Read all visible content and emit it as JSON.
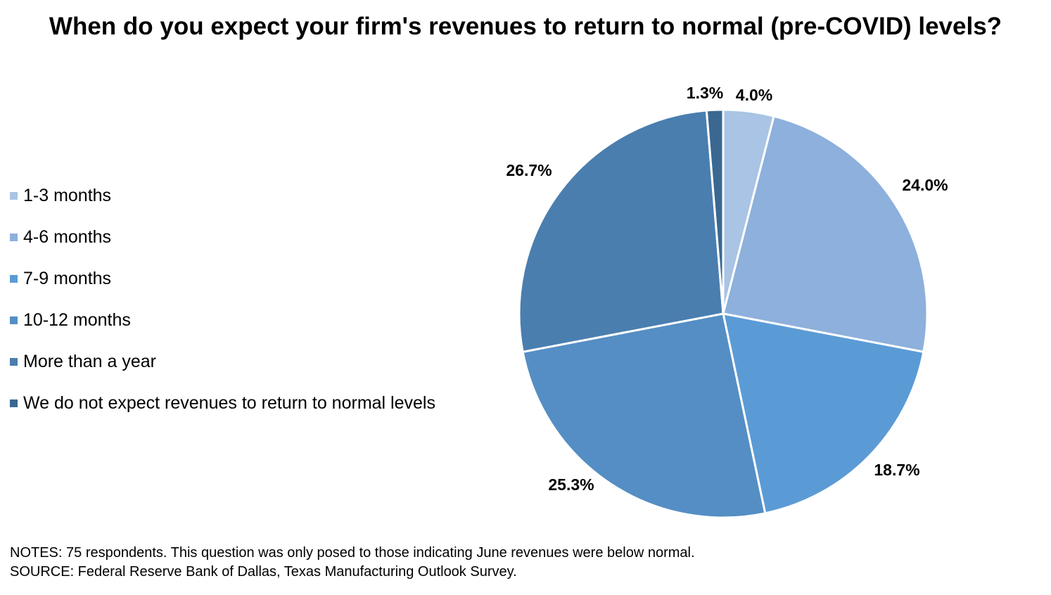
{
  "chart_data": {
    "type": "pie",
    "title": "When do you expect your firm's revenues to return to normal (pre-COVID) levels?",
    "categories": [
      "1-3 months",
      "4-6 months",
      "7-9 months",
      "10-12 months",
      "More than a year",
      "We do not expect revenues to return to normal levels"
    ],
    "values": [
      4.0,
      24.0,
      18.7,
      25.3,
      26.7,
      1.3
    ],
    "value_labels": [
      "4.0%",
      "24.0%",
      "18.7%",
      "25.3%",
      "26.7%",
      "1.3%"
    ],
    "colors": [
      "#a9c4e4",
      "#8db0dc",
      "#5b9bd5",
      "#548ec4",
      "#4a7eaf",
      "#3a6891"
    ],
    "legend_position": "left",
    "start_angle": "12 o'clock, clockwise"
  },
  "notes": {
    "line1": "NOTES: 75 respondents. This question was only posed to those indicating June revenues were below normal.",
    "line2": "SOURCE: Federal Reserve Bank of Dallas, Texas Manufacturing Outlook Survey."
  }
}
